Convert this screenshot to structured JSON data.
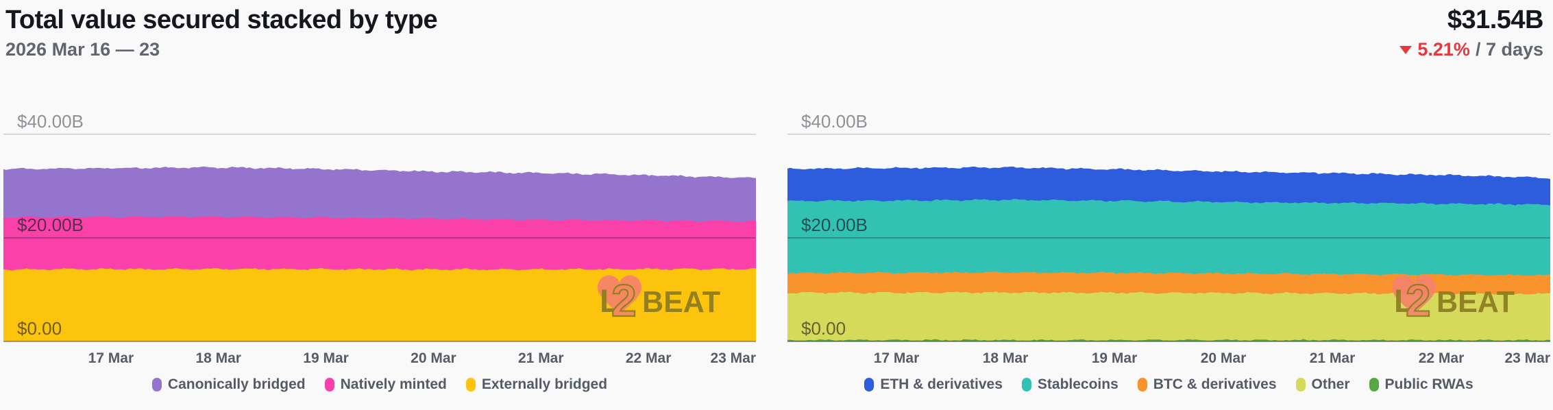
{
  "header": {
    "title": "Total value secured stacked by type",
    "date_range": "2026 Mar 16 — 23",
    "total_value": "$31.54B",
    "change_direction": "down",
    "change_percent": "5.21%",
    "change_period": "/ 7 days"
  },
  "colors": {
    "negative_red": "#e8373b",
    "canonically_bridged_purple": "#9574cd",
    "natively_minted_pink": "#fa41a9",
    "externally_bridged_yellow": "#fcc40d",
    "eth_blue": "#2d5cdd",
    "stablecoins_teal": "#31c2b4",
    "btc_orange": "#f8922d",
    "other_yellowgreen": "#d5da5b",
    "public_rwas_green": "#55a845",
    "watermark_olive": "#8c7b21",
    "watermark_coral": "#f5836b"
  },
  "watermark": {
    "text": "L2BEAT",
    "parts": [
      "L",
      "2",
      "BEAT"
    ]
  },
  "chart_data": [
    {
      "type": "area",
      "position": "left",
      "stacked": true,
      "x_days": [
        16,
        17,
        18,
        19,
        20,
        21,
        22,
        23
      ],
      "x_tick_labels": [
        "17 Mar",
        "18 Mar",
        "19 Mar",
        "20 Mar",
        "21 Mar",
        "22 Mar",
        "23 Mar"
      ],
      "y_tick_values": [
        0,
        20,
        40
      ],
      "y_tick_labels": [
        "$0.00",
        "$20.00B",
        "$40.00B"
      ],
      "ylim": [
        0,
        42
      ],
      "unit": "$B",
      "grid": true,
      "series": [
        {
          "name": "Externally bridged",
          "color": "#fcc40d",
          "values": [
            13.9,
            13.95,
            14.0,
            13.95,
            13.9,
            13.9,
            13.95,
            14.0
          ]
        },
        {
          "name": "Natively minted",
          "color": "#fa41a9",
          "values": [
            10.1,
            10.1,
            10.05,
            9.95,
            9.8,
            9.6,
            9.4,
            9.2
          ]
        },
        {
          "name": "Canonically bridged",
          "color": "#9574cd",
          "values": [
            9.3,
            9.4,
            9.55,
            9.4,
            9.1,
            9.0,
            8.75,
            8.34
          ]
        }
      ],
      "totals_approx": [
        33.3,
        33.45,
        33.6,
        33.3,
        32.8,
        32.5,
        32.1,
        31.54
      ],
      "legend_position": "bottom",
      "legend": [
        {
          "label": "Canonically bridged",
          "color": "#9574cd"
        },
        {
          "label": "Natively minted",
          "color": "#fa41a9"
        },
        {
          "label": "Externally bridged",
          "color": "#fcc40d"
        }
      ]
    },
    {
      "type": "area",
      "position": "right",
      "stacked": true,
      "x_days": [
        16,
        17,
        18,
        19,
        20,
        21,
        22,
        23
      ],
      "x_tick_labels": [
        "17 Mar",
        "18 Mar",
        "19 Mar",
        "20 Mar",
        "21 Mar",
        "22 Mar",
        "23 Mar"
      ],
      "y_tick_values": [
        0,
        20,
        40
      ],
      "y_tick_labels": [
        "$0.00",
        "$20.00B",
        "$40.00B"
      ],
      "ylim": [
        0,
        42
      ],
      "unit": "$B",
      "grid": true,
      "series": [
        {
          "name": "Public RWAs",
          "color": "#55a845",
          "values": [
            0.25,
            0.25,
            0.25,
            0.25,
            0.25,
            0.25,
            0.25,
            0.25
          ]
        },
        {
          "name": "Other",
          "color": "#d5da5b",
          "values": [
            9.15,
            9.15,
            9.2,
            9.15,
            9.1,
            9.05,
            9.0,
            8.95
          ]
        },
        {
          "name": "BTC & derivatives",
          "color": "#f8922d",
          "values": [
            3.8,
            3.85,
            3.9,
            3.85,
            3.75,
            3.7,
            3.65,
            3.6
          ]
        },
        {
          "name": "Stablecoins",
          "color": "#31c2b4",
          "values": [
            13.9,
            13.95,
            14.0,
            13.9,
            13.8,
            13.75,
            13.7,
            13.6
          ]
        },
        {
          "name": "ETH & derivatives",
          "color": "#2d5cdd",
          "values": [
            6.2,
            6.3,
            6.25,
            6.1,
            5.9,
            5.75,
            5.55,
            5.14
          ]
        }
      ],
      "totals_approx": [
        33.3,
        33.5,
        33.6,
        33.25,
        32.8,
        32.5,
        32.15,
        31.54
      ],
      "legend_position": "bottom",
      "legend": [
        {
          "label": "ETH & derivatives",
          "color": "#2d5cdd"
        },
        {
          "label": "Stablecoins",
          "color": "#31c2b4"
        },
        {
          "label": "BTC & derivatives",
          "color": "#f8922d"
        },
        {
          "label": "Other",
          "color": "#d5da5b"
        },
        {
          "label": "Public RWAs",
          "color": "#55a845"
        }
      ]
    }
  ]
}
